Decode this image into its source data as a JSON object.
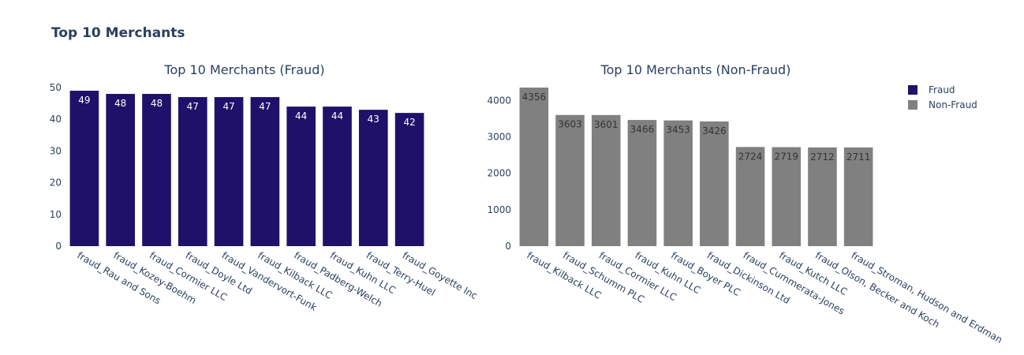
{
  "title": "Top 10 Merchants",
  "colors": {
    "text": "#2a3f5f",
    "fraud": "#1f1169",
    "nonfraud": "#808080"
  },
  "legend": {
    "position": "top-right",
    "items": [
      {
        "label": "Fraud",
        "color": "#1f1169"
      },
      {
        "label": "Non-Fraud",
        "color": "#808080"
      }
    ]
  },
  "chart_data": [
    {
      "type": "bar",
      "title": "Top 10 Merchants (Fraud)",
      "series_name": "Fraud",
      "categories": [
        "fraud_Rau and Sons",
        "fraud_Kozey-Boehm",
        "fraud_Cormier LLC",
        "fraud_Doyle Ltd",
        "fraud_Vandervort-Funk",
        "fraud_Kilback LLC",
        "fraud_Padberg-Welch",
        "fraud_Kuhn LLC",
        "fraud_Terry-Huel",
        "fraud_Goyette Inc"
      ],
      "values": [
        49,
        48,
        48,
        47,
        47,
        47,
        44,
        44,
        43,
        42
      ],
      "ylim": [
        0,
        50
      ],
      "yticks": [
        0,
        10,
        20,
        30,
        40,
        50
      ],
      "grid": false
    },
    {
      "type": "bar",
      "title": "Top 10 Merchants (Non-Fraud)",
      "series_name": "Non-Fraud",
      "categories": [
        "fraud_Kilback LLC",
        "fraud_Schumm PLC",
        "fraud_Cormier LLC",
        "fraud_Kuhn LLC",
        "fraud_Boyer PLC",
        "fraud_Dickinson Ltd",
        "fraud_Cummerata-Jones",
        "fraud_Kutch LLC",
        "fraud_Olson, Becker and Koch",
        "fraud_Stroman, Hudson and Erdman"
      ],
      "values": [
        4356,
        3603,
        3601,
        3466,
        3453,
        3426,
        2724,
        2719,
        2712,
        2711
      ],
      "ylim": [
        0,
        4356
      ],
      "yticks": [
        0,
        1000,
        2000,
        3000,
        4000
      ],
      "grid": false
    }
  ]
}
